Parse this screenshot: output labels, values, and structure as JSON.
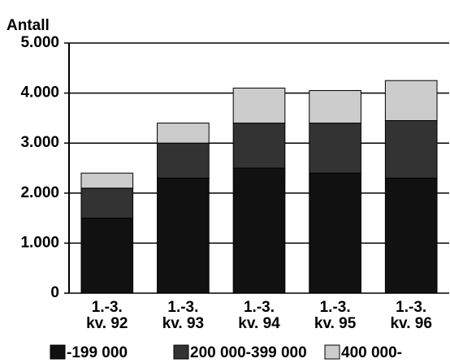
{
  "chart_data": {
    "type": "stacked_bar",
    "y_label": "Antall",
    "categories": [
      [
        "1.-3.",
        "kv. 92"
      ],
      [
        "1.-3.",
        "kv. 93"
      ],
      [
        "1.-3.",
        "kv. 94"
      ],
      [
        "1.-3.",
        "kv. 95"
      ],
      [
        "1.-3.",
        "kv. 96"
      ]
    ],
    "series": [
      {
        "name": "-199 000",
        "color": "#111111",
        "values": [
          1500,
          2300,
          2500,
          2400,
          2300
        ]
      },
      {
        "name": "200 000-399 000",
        "color": "#333333",
        "values": [
          600,
          700,
          900,
          1000,
          1150
        ]
      },
      {
        "name": "400 000-",
        "color": "#cccccc",
        "values": [
          300,
          400,
          700,
          650,
          800
        ]
      }
    ],
    "ylim": [
      0,
      5000
    ],
    "yticks": [
      0,
      {
        "value": 1000,
        "label": "1.000"
      },
      {
        "value": 2000,
        "label": "2.000"
      },
      {
        "value": 3000,
        "label": "3.000"
      },
      {
        "value": 4000,
        "label": "4.000"
      },
      {
        "value": 5000,
        "label": "5.000"
      }
    ],
    "grid": true
  }
}
